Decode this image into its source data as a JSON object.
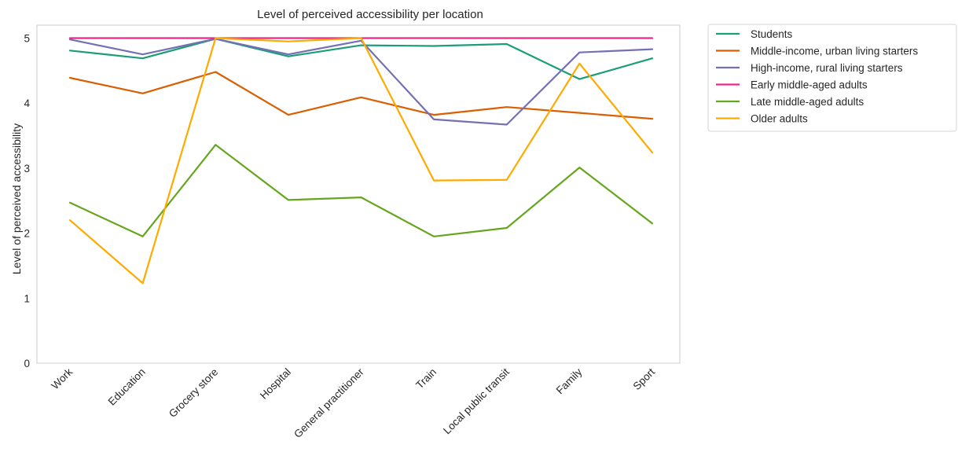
{
  "chart_data": {
    "type": "line",
    "title": "Level of perceived accessibility per location",
    "xlabel": "",
    "ylabel": "Level of perceived accessibility",
    "ylim": [
      0,
      5.2
    ],
    "yticks": [
      0,
      1,
      2,
      3,
      4,
      5
    ],
    "grid": false,
    "legend_position": "outside-top-right",
    "categories": [
      "Work",
      "Education",
      "Grocery store",
      "Hospital",
      "General practitioner",
      "Train",
      "Local public transit",
      "Family",
      "Sport"
    ],
    "series": [
      {
        "name": "Students",
        "color": "#1b9e77",
        "values": [
          4.81,
          4.69,
          4.99,
          4.72,
          4.89,
          4.88,
          4.91,
          4.37,
          4.69
        ]
      },
      {
        "name": "Middle-income, urban living starters",
        "color": "#d95f02",
        "values": [
          4.39,
          4.15,
          4.48,
          3.82,
          4.09,
          3.82,
          3.94,
          3.85,
          3.76
        ]
      },
      {
        "name": "High-income, rural living starters",
        "color": "#7570b3",
        "values": [
          4.98,
          4.75,
          4.99,
          4.75,
          4.96,
          3.75,
          3.67,
          4.78,
          4.83
        ]
      },
      {
        "name": "Early middle-aged adults",
        "color": "#e7298a",
        "values": [
          5.0,
          5.0,
          5.0,
          5.0,
          5.0,
          5.0,
          5.0,
          5.0,
          5.0
        ]
      },
      {
        "name": "Late middle-aged adults",
        "color": "#66a61e",
        "values": [
          2.47,
          1.95,
          3.36,
          2.51,
          2.55,
          1.95,
          2.08,
          3.01,
          2.15
        ]
      },
      {
        "name": "Older adults",
        "color": "#ffaa00",
        "values": [
          2.2,
          1.23,
          5.0,
          4.95,
          5.0,
          2.81,
          2.82,
          4.61,
          3.24
        ]
      }
    ]
  }
}
